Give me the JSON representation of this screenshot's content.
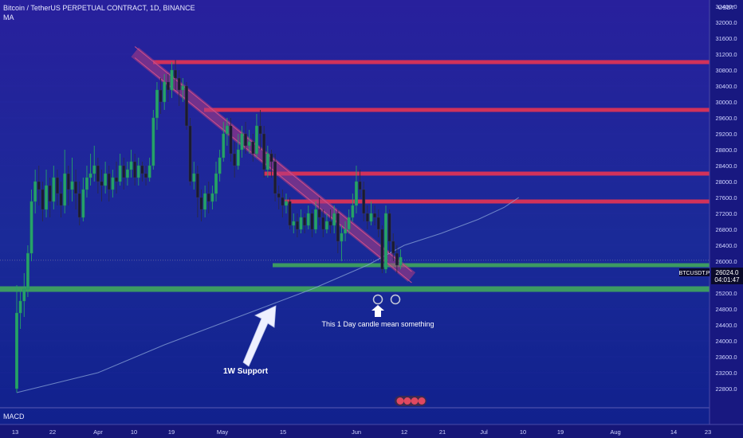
{
  "header": {
    "title": "Bitcoin / TetherUS PERPETUAL CONTRACT, 1D, BINANCE",
    "indicator": "MA"
  },
  "price_axis": {
    "currency": "USDT",
    "ticks": [
      "32400.0",
      "32000.0",
      "31600.0",
      "31200.0",
      "30800.0",
      "30400.0",
      "30000.0",
      "29600.0",
      "29200.0",
      "28800.0",
      "28400.0",
      "28000.0",
      "27600.0",
      "27200.0",
      "26800.0",
      "26400.0",
      "26000.0",
      "25600.0",
      "25200.0",
      "24800.0",
      "24400.0",
      "24000.0",
      "23600.0",
      "23200.0",
      "22800.0"
    ]
  },
  "time_axis": {
    "ticks": [
      "13",
      "22",
      "Apr",
      "10",
      "19",
      "May",
      "15",
      "Jun",
      "12",
      "21",
      "Jul",
      "10",
      "19",
      "Aug",
      "14",
      "23"
    ]
  },
  "symbol_badge": {
    "symbol": "BTCUSDT.P",
    "price": "26024.0",
    "countdown": "04:01:47"
  },
  "subpanel": {
    "label": "MACD"
  },
  "annotations": {
    "support_label": "1W Support",
    "candle_note": "This 1 Day candle mean something"
  },
  "colors": {
    "background": "#1a1a8c",
    "resistance": "#d2325a",
    "support": "#3c9a62",
    "trendline": "#b43c82",
    "up_candle": "#26a269",
    "down_candle": "#1b1b2f",
    "ma_line": "#8aa4d8"
  },
  "chart_data": {
    "type": "candlestick",
    "symbol": "BTCUSDT.P",
    "timeframe": "1D",
    "yrange": [
      22700,
      32650
    ],
    "last_price": 26024.0,
    "resistance_levels": [
      31000,
      29800,
      28200,
      27500
    ],
    "support_levels": [
      25900,
      25300
    ],
    "trendline": {
      "from": [
        "2023-04-14",
        31250
      ],
      "to": [
        "2023-06-28",
        25600
      ]
    },
    "candles": [
      [
        22800,
        24700,
        25400,
        22700
      ],
      [
        24700,
        25000,
        25300,
        24300
      ],
      [
        25000,
        25300,
        25700,
        24600
      ],
      [
        25300,
        26200,
        26400,
        25100
      ],
      [
        26200,
        27500,
        27800,
        26000
      ],
      [
        27500,
        28000,
        28300,
        27200
      ],
      [
        28000,
        27800,
        28400,
        27400
      ],
      [
        27800,
        27300,
        28000,
        27000
      ],
      [
        27300,
        27900,
        28300,
        27100
      ],
      [
        27900,
        27500,
        28100,
        27100
      ],
      [
        27500,
        28100,
        28400,
        27300
      ],
      [
        28100,
        27700,
        28300,
        27400
      ],
      [
        27700,
        27400,
        28000,
        27100
      ],
      [
        27400,
        28200,
        28800,
        27200
      ],
      [
        28200,
        27800,
        28400,
        27400
      ],
      [
        27800,
        28000,
        28600,
        27500
      ],
      [
        28000,
        27700,
        28300,
        27300
      ],
      [
        27700,
        27100,
        28000,
        26900
      ],
      [
        27100,
        27800,
        28100,
        27000
      ],
      [
        27800,
        28100,
        28400,
        27600
      ],
      [
        28100,
        28200,
        28700,
        27900
      ],
      [
        28200,
        28400,
        28900,
        28000
      ],
      [
        28400,
        28000,
        28600,
        27700
      ],
      [
        28000,
        27900,
        28300,
        27500
      ],
      [
        27900,
        28200,
        28500,
        27700
      ],
      [
        28200,
        27800,
        28400,
        27500
      ],
      [
        27800,
        28100,
        28300,
        27600
      ],
      [
        28100,
        28000,
        28500,
        27700
      ],
      [
        28000,
        28400,
        28700,
        27900
      ],
      [
        28400,
        28100,
        28600,
        27800
      ],
      [
        28100,
        28300,
        28500,
        27900
      ],
      [
        28300,
        28500,
        28800,
        28100
      ],
      [
        28500,
        28100,
        28700,
        27900
      ],
      [
        28100,
        28400,
        28600,
        27900
      ],
      [
        28400,
        28200,
        28500,
        28000
      ],
      [
        28200,
        28100,
        28400,
        27900
      ],
      [
        28100,
        28400,
        28600,
        28000
      ],
      [
        28400,
        29600,
        29800,
        28300
      ],
      [
        29600,
        30300,
        30500,
        29300
      ],
      [
        30300,
        30000,
        30600,
        29700
      ],
      [
        30000,
        30500,
        30700,
        29800
      ],
      [
        30500,
        30300,
        30700,
        30000
      ],
      [
        30300,
        30800,
        31000,
        30100
      ],
      [
        30800,
        30600,
        31050,
        30300
      ],
      [
        30600,
        30300,
        30800,
        29900
      ],
      [
        30300,
        30400,
        30600,
        30000
      ],
      [
        30400,
        29400,
        30500,
        29300
      ],
      [
        29400,
        28000,
        29600,
        27900
      ],
      [
        28000,
        28200,
        28500,
        27800
      ],
      [
        28200,
        27600,
        28400,
        27100
      ],
      [
        27600,
        27300,
        27800,
        27000
      ],
      [
        27300,
        27700,
        27900,
        27100
      ],
      [
        27700,
        27500,
        28000,
        27200
      ],
      [
        27500,
        27700,
        27900,
        27300
      ],
      [
        27700,
        28200,
        28500,
        27500
      ],
      [
        28200,
        28600,
        28800,
        28000
      ],
      [
        28600,
        29200,
        29500,
        28500
      ],
      [
        29200,
        29400,
        29600,
        28900
      ],
      [
        29400,
        28700,
        29600,
        28500
      ],
      [
        28700,
        28400,
        29000,
        28100
      ],
      [
        28400,
        28800,
        29200,
        28300
      ],
      [
        28800,
        29200,
        29400,
        28600
      ],
      [
        29200,
        28900,
        29500,
        28700
      ],
      [
        28900,
        29000,
        29300,
        28700
      ],
      [
        29000,
        28700,
        29200,
        28500
      ],
      [
        28700,
        29400,
        29700,
        28600
      ],
      [
        29400,
        29200,
        29800,
        28800
      ],
      [
        29200,
        28300,
        29400,
        28100
      ],
      [
        28300,
        28700,
        28900,
        28100
      ],
      [
        28700,
        28500,
        28800,
        28100
      ],
      [
        28500,
        27700,
        28700,
        27500
      ],
      [
        27700,
        27600,
        27900,
        27300
      ],
      [
        27600,
        27400,
        27800,
        27100
      ],
      [
        27400,
        27500,
        27700,
        27200
      ],
      [
        27500,
        26900,
        27600,
        26800
      ],
      [
        26900,
        27000,
        27200,
        26700
      ],
      [
        27000,
        26800,
        27200,
        26600
      ],
      [
        26800,
        27100,
        27300,
        26700
      ],
      [
        27100,
        26900,
        27200,
        26700
      ],
      [
        26900,
        27200,
        27400,
        26800
      ],
      [
        27200,
        26800,
        27300,
        26600
      ],
      [
        26800,
        27300,
        27500,
        26700
      ],
      [
        27300,
        27100,
        27600,
        26900
      ],
      [
        27100,
        26800,
        27300,
        26600
      ],
      [
        26800,
        27000,
        27200,
        26700
      ],
      [
        27000,
        26900,
        27300,
        26700
      ],
      [
        26900,
        27200,
        27400,
        26700
      ],
      [
        27200,
        26500,
        27300,
        26200
      ],
      [
        26500,
        26700,
        26900,
        26000
      ],
      [
        26700,
        26800,
        27000,
        26500
      ],
      [
        26800,
        27100,
        27300,
        26700
      ],
      [
        27100,
        27400,
        27700,
        27000
      ],
      [
        27400,
        28000,
        28400,
        27200
      ],
      [
        28000,
        27800,
        28300,
        27600
      ],
      [
        27800,
        27200,
        28000,
        27000
      ],
      [
        27200,
        27000,
        27400,
        26800
      ],
      [
        27000,
        27200,
        27500,
        26900
      ],
      [
        27200,
        27100,
        27400,
        26900
      ],
      [
        27100,
        26800,
        27300,
        26600
      ],
      [
        26800,
        25800,
        26900,
        25700
      ],
      [
        25800,
        27200,
        27400,
        25700
      ],
      [
        27200,
        26500,
        27300,
        26200
      ],
      [
        26500,
        26200,
        26700,
        26000
      ],
      [
        26200,
        25900,
        26400,
        25700
      ],
      [
        25900,
        26100,
        26300,
        25800
      ]
    ],
    "moving_average": [
      [
        0,
        22700
      ],
      [
        22,
        23200
      ],
      [
        40,
        23900
      ],
      [
        60,
        24600
      ],
      [
        80,
        25300
      ],
      [
        95,
        25900
      ],
      [
        105,
        26400
      ],
      [
        115,
        26700
      ],
      [
        125,
        27050
      ],
      [
        132,
        27350
      ],
      [
        136,
        27600
      ]
    ]
  }
}
